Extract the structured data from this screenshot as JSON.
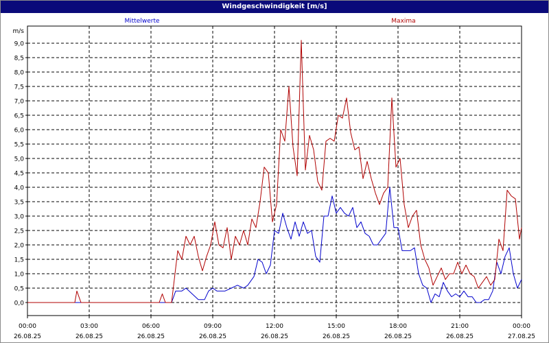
{
  "chart_data": {
    "type": "line",
    "title": "Windgeschwindigkeit [m/s]",
    "ylabel": "m/s",
    "xlabel": "",
    "ylim": [
      0,
      9.5
    ],
    "y_ticks": [
      "0,0",
      "0,5",
      "1,0",
      "1,5",
      "2,0",
      "2,5",
      "3,0",
      "3,5",
      "4,0",
      "4,5",
      "5,0",
      "5,5",
      "6,0",
      "6,5",
      "7,0",
      "7,5",
      "8,0",
      "8,5",
      "9,0"
    ],
    "x_range_hours": [
      0,
      24
    ],
    "x_ticks": [
      {
        "time": "00:00",
        "date": "26.08.25"
      },
      {
        "time": "03:00",
        "date": "26.08.25"
      },
      {
        "time": "06:00",
        "date": "26.08.25"
      },
      {
        "time": "09:00",
        "date": "26.08.25"
      },
      {
        "time": "12:00",
        "date": "26.08.25"
      },
      {
        "time": "15:00",
        "date": "26.08.25"
      },
      {
        "time": "18:00",
        "date": "26.08.25"
      },
      {
        "time": "21:00",
        "date": "26.08.25"
      },
      {
        "time": "00:00",
        "date": "27.08.25"
      }
    ],
    "grid": true,
    "legend_position": "top",
    "series": [
      {
        "name": "Mittelwerte",
        "color": "#0000cc",
        "points": [
          [
            0,
            0
          ],
          [
            7,
            0
          ],
          [
            7.2,
            0.4
          ],
          [
            7.5,
            0.4
          ],
          [
            7.7,
            0.5
          ],
          [
            8,
            0.3
          ],
          [
            8.3,
            0.1
          ],
          [
            8.6,
            0.1
          ],
          [
            8.8,
            0.4
          ],
          [
            9,
            0.5
          ],
          [
            9.2,
            0.4
          ],
          [
            9.4,
            0.4
          ],
          [
            9.6,
            0.4
          ],
          [
            9.9,
            0.5
          ],
          [
            10.2,
            0.6
          ],
          [
            10.5,
            0.5
          ],
          [
            10.7,
            0.6
          ],
          [
            11,
            0.9
          ],
          [
            11.2,
            1.5
          ],
          [
            11.4,
            1.4
          ],
          [
            11.6,
            1.0
          ],
          [
            11.8,
            1.3
          ],
          [
            12,
            2.5
          ],
          [
            12.2,
            2.4
          ],
          [
            12.4,
            3.1
          ],
          [
            12.6,
            2.6
          ],
          [
            12.8,
            2.2
          ],
          [
            13,
            2.8
          ],
          [
            13.2,
            2.3
          ],
          [
            13.4,
            2.8
          ],
          [
            13.6,
            2.4
          ],
          [
            13.8,
            2.5
          ],
          [
            14,
            1.6
          ],
          [
            14.2,
            1.4
          ],
          [
            14.4,
            3.0
          ],
          [
            14.6,
            3.0
          ],
          [
            14.8,
            3.7
          ],
          [
            15,
            3.1
          ],
          [
            15.2,
            3.3
          ],
          [
            15.4,
            3.1
          ],
          [
            15.6,
            3.0
          ],
          [
            15.8,
            3.3
          ],
          [
            16,
            2.6
          ],
          [
            16.2,
            2.8
          ],
          [
            16.4,
            2.4
          ],
          [
            16.6,
            2.3
          ],
          [
            16.8,
            2.0
          ],
          [
            17,
            2.0
          ],
          [
            17.2,
            2.2
          ],
          [
            17.4,
            2.4
          ],
          [
            17.6,
            4.0
          ],
          [
            17.8,
            2.6
          ],
          [
            18,
            2.6
          ],
          [
            18.2,
            1.8
          ],
          [
            18.6,
            1.8
          ],
          [
            18.8,
            1.9
          ],
          [
            19,
            1.0
          ],
          [
            19.2,
            0.6
          ],
          [
            19.4,
            0.5
          ],
          [
            19.6,
            0
          ],
          [
            19.8,
            0.3
          ],
          [
            20,
            0.2
          ],
          [
            20.2,
            0.7
          ],
          [
            20.4,
            0.4
          ],
          [
            20.6,
            0.2
          ],
          [
            20.8,
            0.3
          ],
          [
            21,
            0.2
          ],
          [
            21.2,
            0.4
          ],
          [
            21.4,
            0.2
          ],
          [
            21.6,
            0.2
          ],
          [
            21.8,
            0
          ],
          [
            22,
            0
          ],
          [
            22.2,
            0.1
          ],
          [
            22.4,
            0.1
          ],
          [
            22.6,
            0.4
          ],
          [
            22.8,
            1.4
          ],
          [
            23,
            1.0
          ],
          [
            23.2,
            1.6
          ],
          [
            23.4,
            1.9
          ],
          [
            23.6,
            1.0
          ],
          [
            23.8,
            0.5
          ],
          [
            24,
            0.8
          ]
        ]
      },
      {
        "name": "Maxima",
        "color": "#b00000",
        "points": [
          [
            0,
            0
          ],
          [
            2.3,
            0
          ],
          [
            2.4,
            0.4
          ],
          [
            2.6,
            0
          ],
          [
            6.4,
            0
          ],
          [
            6.55,
            0.3
          ],
          [
            6.7,
            0
          ],
          [
            7,
            0
          ],
          [
            7.3,
            1.8
          ],
          [
            7.5,
            1.5
          ],
          [
            7.7,
            2.3
          ],
          [
            7.9,
            2.0
          ],
          [
            8.1,
            2.3
          ],
          [
            8.3,
            1.6
          ],
          [
            8.5,
            1.1
          ],
          [
            8.7,
            1.6
          ],
          [
            8.9,
            2.0
          ],
          [
            9.1,
            2.8
          ],
          [
            9.3,
            2.0
          ],
          [
            9.5,
            1.9
          ],
          [
            9.7,
            2.6
          ],
          [
            9.9,
            1.5
          ],
          [
            10.1,
            2.3
          ],
          [
            10.3,
            2.0
          ],
          [
            10.5,
            2.5
          ],
          [
            10.7,
            2.0
          ],
          [
            10.9,
            2.9
          ],
          [
            11.1,
            2.6
          ],
          [
            11.3,
            3.5
          ],
          [
            11.5,
            4.7
          ],
          [
            11.7,
            4.5
          ],
          [
            11.9,
            2.8
          ],
          [
            12.1,
            3.4
          ],
          [
            12.3,
            6.0
          ],
          [
            12.5,
            5.6
          ],
          [
            12.7,
            7.5
          ],
          [
            12.9,
            5.4
          ],
          [
            13.1,
            4.4
          ],
          [
            13.3,
            9.1
          ],
          [
            13.5,
            4.6
          ],
          [
            13.7,
            5.8
          ],
          [
            13.9,
            5.3
          ],
          [
            14.1,
            4.2
          ],
          [
            14.3,
            3.9
          ],
          [
            14.5,
            5.6
          ],
          [
            14.7,
            5.7
          ],
          [
            14.9,
            5.6
          ],
          [
            15.1,
            6.5
          ],
          [
            15.3,
            6.4
          ],
          [
            15.5,
            7.1
          ],
          [
            15.7,
            5.9
          ],
          [
            15.9,
            5.3
          ],
          [
            16.1,
            5.4
          ],
          [
            16.3,
            4.3
          ],
          [
            16.5,
            4.9
          ],
          [
            16.7,
            4.3
          ],
          [
            16.9,
            3.8
          ],
          [
            17.1,
            3.4
          ],
          [
            17.3,
            3.8
          ],
          [
            17.5,
            4.0
          ],
          [
            17.7,
            7.1
          ],
          [
            17.9,
            4.7
          ],
          [
            18.1,
            5.0
          ],
          [
            18.3,
            3.4
          ],
          [
            18.5,
            2.6
          ],
          [
            18.7,
            3.0
          ],
          [
            18.9,
            3.2
          ],
          [
            19.1,
            2.0
          ],
          [
            19.3,
            1.5
          ],
          [
            19.5,
            1.2
          ],
          [
            19.7,
            0.6
          ],
          [
            19.9,
            0.9
          ],
          [
            20.1,
            1.2
          ],
          [
            20.3,
            0.8
          ],
          [
            20.5,
            1.0
          ],
          [
            20.7,
            1.0
          ],
          [
            20.9,
            1.4
          ],
          [
            21.1,
            1.0
          ],
          [
            21.3,
            1.3
          ],
          [
            21.5,
            1.0
          ],
          [
            21.7,
            0.9
          ],
          [
            21.9,
            0.5
          ],
          [
            22.1,
            0.7
          ],
          [
            22.3,
            0.9
          ],
          [
            22.5,
            0.6
          ],
          [
            22.7,
            0.8
          ],
          [
            22.9,
            2.2
          ],
          [
            23.1,
            1.8
          ],
          [
            23.3,
            3.9
          ],
          [
            23.5,
            3.7
          ],
          [
            23.7,
            3.6
          ],
          [
            23.9,
            2.2
          ],
          [
            24,
            2.6
          ]
        ]
      }
    ]
  }
}
